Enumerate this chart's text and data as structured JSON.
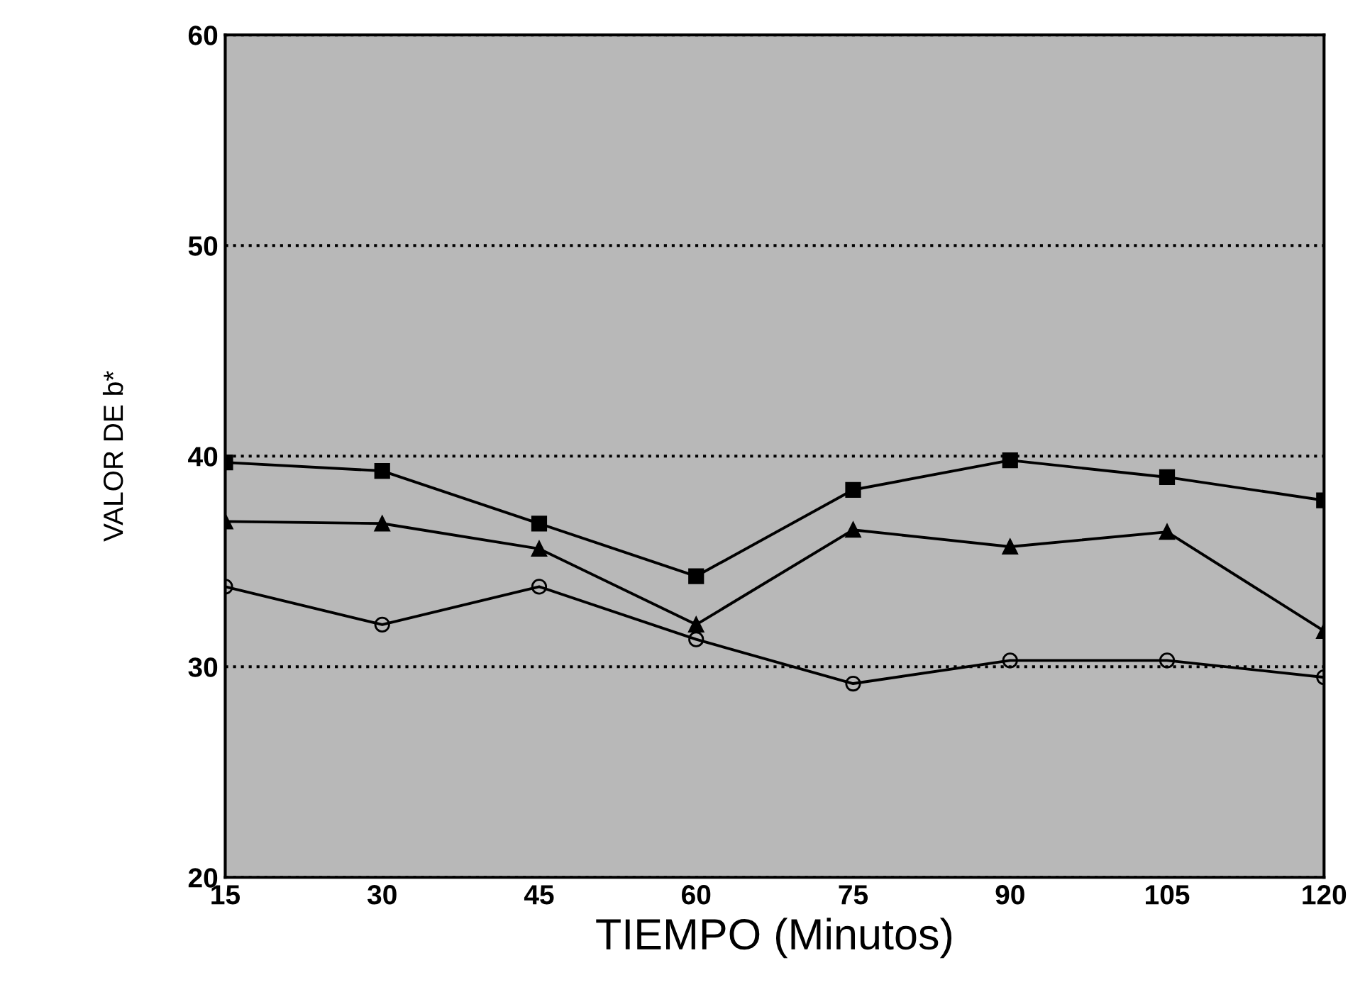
{
  "chart_data": {
    "type": "line",
    "xlabel": "TIEMPO (Minutos)",
    "ylabel": "VALOR DE b*",
    "x": [
      15,
      30,
      45,
      60,
      75,
      90,
      105,
      120
    ],
    "xlim": [
      15,
      120
    ],
    "xticks": [
      15,
      30,
      45,
      60,
      75,
      90,
      105,
      120
    ],
    "ylim": [
      20,
      60
    ],
    "yticks": [
      20,
      30,
      40,
      50,
      60
    ],
    "grid": "y",
    "line_style": "solid",
    "series": [
      {
        "color": "#000000",
        "marker": "square",
        "values": [
          39.7,
          39.3,
          36.8,
          34.3,
          38.4,
          39.8,
          39.0,
          37.9
        ]
      },
      {
        "color": "#000000",
        "marker": "triangle",
        "values": [
          36.9,
          36.8,
          35.6,
          32.0,
          36.5,
          35.7,
          36.4,
          31.7
        ]
      },
      {
        "color": "#000000",
        "marker": "circle",
        "values": [
          33.8,
          32.0,
          33.8,
          31.3,
          29.2,
          30.3,
          30.3,
          29.5
        ]
      }
    ]
  }
}
